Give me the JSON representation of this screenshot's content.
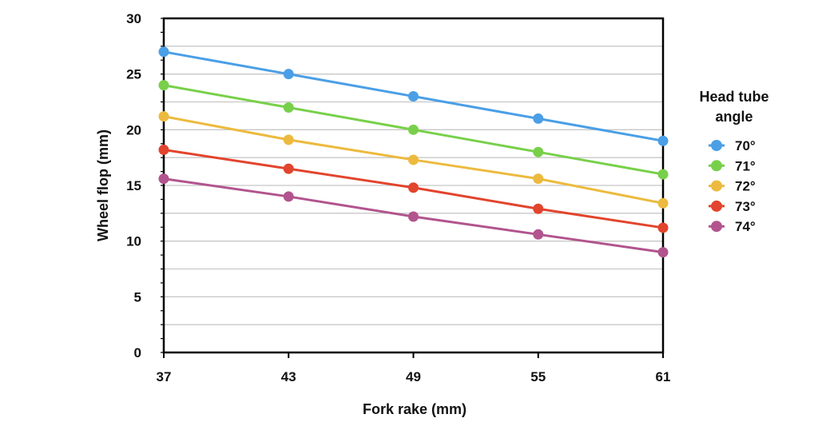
{
  "chart_data": {
    "type": "line",
    "title": "",
    "xlabel": "Fork rake (mm)",
    "ylabel": "Wheel flop (mm)",
    "x": [
      37,
      43,
      49,
      55,
      61
    ],
    "x_tick_labels": [
      "37",
      "43",
      "49",
      "55",
      "61"
    ],
    "ylim": [
      0,
      30
    ],
    "y_ticks": [
      0,
      5,
      10,
      15,
      20,
      25,
      30
    ],
    "y_tick_labels": [
      "0",
      "5",
      "10",
      "15",
      "20",
      "25",
      "30"
    ],
    "grid": true,
    "legend_title_lines": [
      "Head tube",
      "angle"
    ],
    "legend_position": "right",
    "series": [
      {
        "name": "70°",
        "color": "#4a9fe6",
        "values": [
          27.0,
          25.0,
          23.0,
          21.0,
          19.0
        ]
      },
      {
        "name": "71°",
        "color": "#78d04a",
        "values": [
          24.0,
          22.0,
          20.0,
          18.0,
          16.0
        ]
      },
      {
        "name": "72°",
        "color": "#ecba3e",
        "values": [
          21.2,
          19.1,
          17.3,
          15.6,
          13.4
        ]
      },
      {
        "name": "73°",
        "color": "#e2442d",
        "values": [
          18.2,
          16.5,
          14.8,
          12.9,
          11.2
        ]
      },
      {
        "name": "74°",
        "color": "#b2548e",
        "values": [
          15.6,
          14.0,
          12.2,
          10.6,
          9.0
        ]
      }
    ]
  }
}
